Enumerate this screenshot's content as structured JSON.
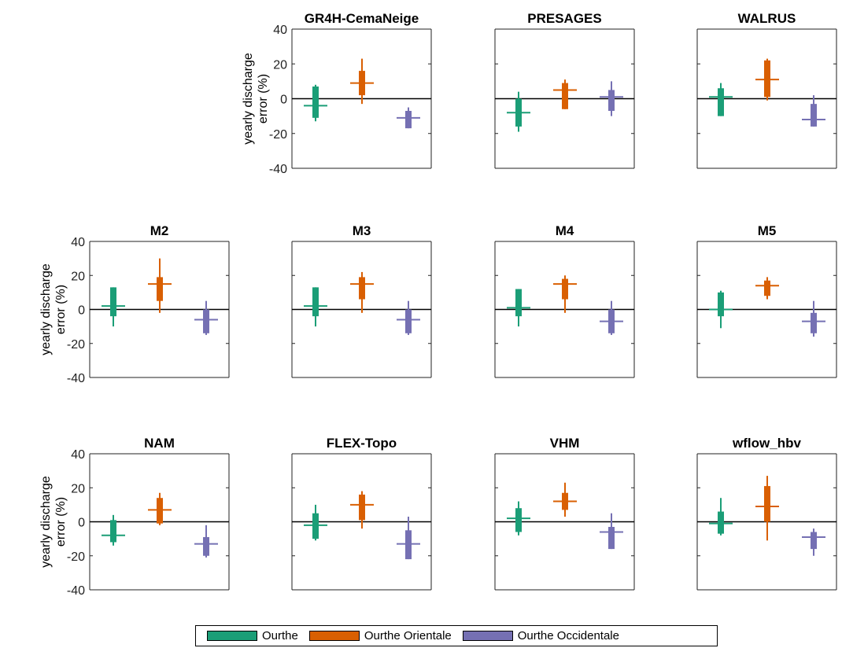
{
  "colors": {
    "Ourthe": "#1b9e77",
    "Ourthe Orientale": "#d95f02",
    "Ourthe Occidentale": "#7570b3"
  },
  "chart_data": {
    "type": "box",
    "ylabel": "yearly discharge error (%)",
    "ylim": [
      -40,
      40
    ],
    "yticks": [
      -40,
      -20,
      0,
      20,
      40
    ],
    "grid": false,
    "legend_position": "bottom",
    "series_names": [
      "Ourthe",
      "Ourthe Orientale",
      "Ourthe Occidentale"
    ],
    "panels": [
      {
        "title": "GR4H-CemaNeige",
        "boxes": [
          {
            "series": "Ourthe",
            "whisker_low": -13,
            "q1": -11,
            "median": -4,
            "q3": 7,
            "whisker_high": 8
          },
          {
            "series": "Ourthe Orientale",
            "whisker_low": -3,
            "q1": 2,
            "median": 9,
            "q3": 16,
            "whisker_high": 23
          },
          {
            "series": "Ourthe Occidentale",
            "whisker_low": -17,
            "q1": -17,
            "median": -11,
            "q3": -7,
            "whisker_high": -5
          }
        ]
      },
      {
        "title": "PRESAGES",
        "boxes": [
          {
            "series": "Ourthe",
            "whisker_low": -19,
            "q1": -16,
            "median": -8,
            "q3": 0,
            "whisker_high": 4
          },
          {
            "series": "Ourthe Orientale",
            "whisker_low": -6,
            "q1": -6,
            "median": 5,
            "q3": 9,
            "whisker_high": 11
          },
          {
            "series": "Ourthe Occidentale",
            "whisker_low": -10,
            "q1": -7,
            "median": 1,
            "q3": 5,
            "whisker_high": 10
          }
        ]
      },
      {
        "title": "WALRUS",
        "boxes": [
          {
            "series": "Ourthe",
            "whisker_low": -10,
            "q1": -10,
            "median": 1,
            "q3": 6,
            "whisker_high": 9
          },
          {
            "series": "Ourthe Orientale",
            "whisker_low": -1,
            "q1": 1,
            "median": 11,
            "q3": 22,
            "whisker_high": 23
          },
          {
            "series": "Ourthe Occidentale",
            "whisker_low": -16,
            "q1": -16,
            "median": -12,
            "q3": -3,
            "whisker_high": 2
          }
        ]
      },
      {
        "title": "M2",
        "boxes": [
          {
            "series": "Ourthe",
            "whisker_low": -10,
            "q1": -4,
            "median": 2,
            "q3": 13,
            "whisker_high": 13
          },
          {
            "series": "Ourthe Orientale",
            "whisker_low": -2,
            "q1": 5,
            "median": 15,
            "q3": 19,
            "whisker_high": 30
          },
          {
            "series": "Ourthe Occidentale",
            "whisker_low": -15,
            "q1": -14,
            "median": -6,
            "q3": 0,
            "whisker_high": 5
          }
        ]
      },
      {
        "title": "M3",
        "boxes": [
          {
            "series": "Ourthe",
            "whisker_low": -10,
            "q1": -4,
            "median": 2,
            "q3": 13,
            "whisker_high": 13
          },
          {
            "series": "Ourthe Orientale",
            "whisker_low": -2,
            "q1": 6,
            "median": 15,
            "q3": 19,
            "whisker_high": 22
          },
          {
            "series": "Ourthe Occidentale",
            "whisker_low": -15,
            "q1": -14,
            "median": -6,
            "q3": 0,
            "whisker_high": 5
          }
        ]
      },
      {
        "title": "M4",
        "boxes": [
          {
            "series": "Ourthe",
            "whisker_low": -10,
            "q1": -4,
            "median": 1,
            "q3": 12,
            "whisker_high": 12
          },
          {
            "series": "Ourthe Orientale",
            "whisker_low": -2,
            "q1": 6,
            "median": 15,
            "q3": 18,
            "whisker_high": 20
          },
          {
            "series": "Ourthe Occidentale",
            "whisker_low": -15,
            "q1": -14,
            "median": -7,
            "q3": 0,
            "whisker_high": 5
          }
        ]
      },
      {
        "title": "M5",
        "boxes": [
          {
            "series": "Ourthe",
            "whisker_low": -11,
            "q1": -4,
            "median": 0,
            "q3": 10,
            "whisker_high": 11
          },
          {
            "series": "Ourthe Orientale",
            "whisker_low": 6,
            "q1": 8,
            "median": 14,
            "q3": 17,
            "whisker_high": 19
          },
          {
            "series": "Ourthe Occidentale",
            "whisker_low": -16,
            "q1": -14,
            "median": -7,
            "q3": -2,
            "whisker_high": 5
          }
        ]
      },
      {
        "title": "NAM",
        "boxes": [
          {
            "series": "Ourthe",
            "whisker_low": -14,
            "q1": -12,
            "median": -8,
            "q3": 1,
            "whisker_high": 4
          },
          {
            "series": "Ourthe Orientale",
            "whisker_low": -2,
            "q1": -1,
            "median": 7,
            "q3": 14,
            "whisker_high": 17
          },
          {
            "series": "Ourthe Occidentale",
            "whisker_low": -21,
            "q1": -20,
            "median": -13,
            "q3": -9,
            "whisker_high": -2
          }
        ]
      },
      {
        "title": "FLEX-Topo",
        "boxes": [
          {
            "series": "Ourthe",
            "whisker_low": -11,
            "q1": -10,
            "median": -2,
            "q3": 5,
            "whisker_high": 10
          },
          {
            "series": "Ourthe Orientale",
            "whisker_low": -4,
            "q1": 1,
            "median": 10,
            "q3": 16,
            "whisker_high": 18
          },
          {
            "series": "Ourthe Occidentale",
            "whisker_low": -22,
            "q1": -22,
            "median": -13,
            "q3": -5,
            "whisker_high": 3
          }
        ]
      },
      {
        "title": "VHM",
        "boxes": [
          {
            "series": "Ourthe",
            "whisker_low": -8,
            "q1": -6,
            "median": 2,
            "q3": 8,
            "whisker_high": 12
          },
          {
            "series": "Ourthe Orientale",
            "whisker_low": 3,
            "q1": 7,
            "median": 12,
            "q3": 17,
            "whisker_high": 23
          },
          {
            "series": "Ourthe Occidentale",
            "whisker_low": -16,
            "q1": -16,
            "median": -6,
            "q3": -3,
            "whisker_high": 5
          }
        ]
      },
      {
        "title": "wflow_hbv",
        "boxes": [
          {
            "series": "Ourthe",
            "whisker_low": -8,
            "q1": -7,
            "median": -1,
            "q3": 6,
            "whisker_high": 14
          },
          {
            "series": "Ourthe Orientale",
            "whisker_low": -11,
            "q1": 0,
            "median": 9,
            "q3": 21,
            "whisker_high": 27
          },
          {
            "series": "Ourthe Occidentale",
            "whisker_low": -20,
            "q1": -16,
            "median": -9,
            "q3": -6,
            "whisker_high": -4
          }
        ]
      }
    ]
  }
}
